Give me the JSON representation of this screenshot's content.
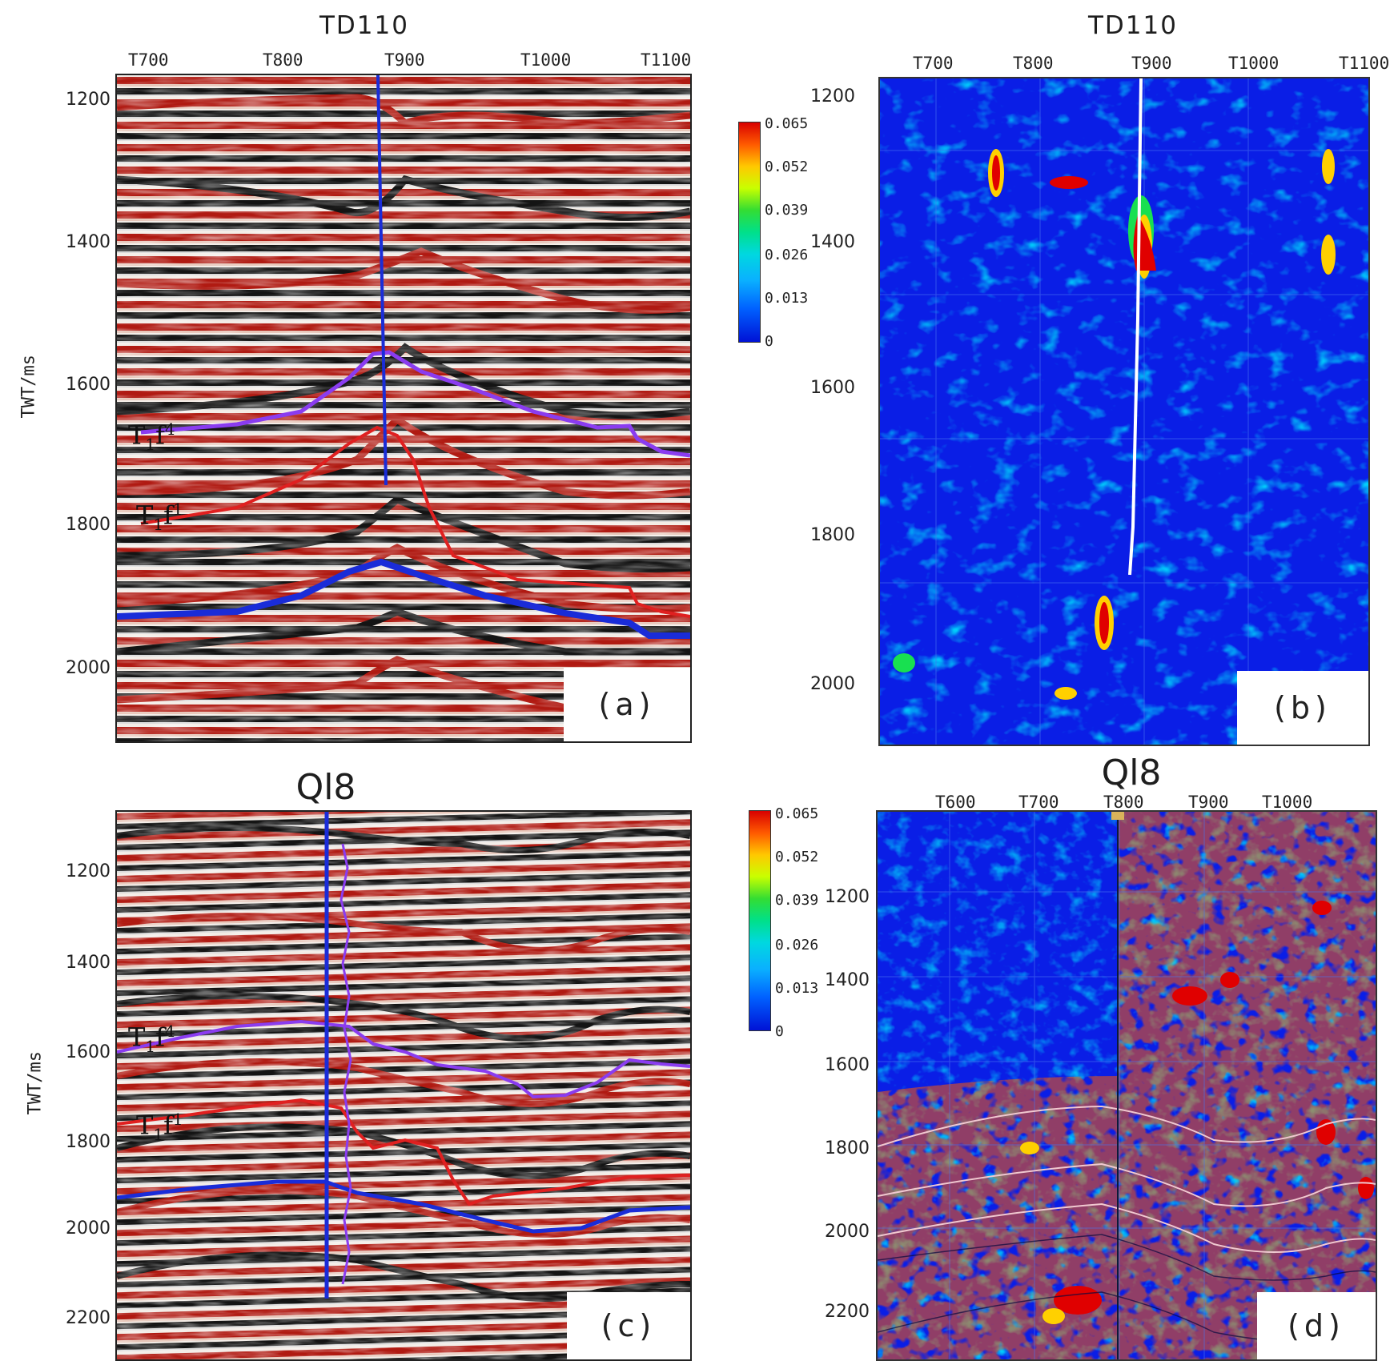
{
  "panel_a": {
    "title": "TD110",
    "x_ticks": [
      "T700",
      "T800",
      "T900",
      "T1000",
      "T1100"
    ],
    "y_ticks": [
      "1200",
      "1400",
      "1600",
      "1800",
      "2000"
    ],
    "y_label": "TWT/ms",
    "label": "(a)",
    "horizon_upper": {
      "main": "T",
      "sub": "1",
      "mid": "f",
      "sup": "4"
    },
    "horizon_lower": {
      "main": "T",
      "sub": "1",
      "mid": "f",
      "sup": "1"
    }
  },
  "panel_b": {
    "title": "TD110",
    "x_ticks": [
      "T700",
      "T800",
      "T900",
      "T1000",
      "T1100"
    ],
    "y_ticks": [
      "1200",
      "1400",
      "1600",
      "1800",
      "2000"
    ],
    "label": "(b)"
  },
  "colorbar_top": {
    "ticks": [
      "0.065",
      "0.052",
      "0.039",
      "0.026",
      "0.013",
      "0"
    ]
  },
  "panel_c": {
    "title": "Ql8",
    "y_ticks": [
      "1200",
      "1400",
      "1600",
      "1800",
      "2000",
      "2200"
    ],
    "y_label": "TWT/ms",
    "label": "(c)",
    "horizon_upper": {
      "main": "T",
      "sub": "1",
      "mid": "f",
      "sup": "4"
    },
    "horizon_lower": {
      "main": "T",
      "sub": "1",
      "mid": "f",
      "sup": "1"
    }
  },
  "panel_d": {
    "title": "Ql8",
    "x_ticks": [
      "T600",
      "T700",
      "T800",
      "T900",
      "T1000"
    ],
    "y_ticks": [
      "1200",
      "1400",
      "1600",
      "1800",
      "2000",
      "2200"
    ],
    "label": "(d)"
  },
  "colorbar_bottom": {
    "ticks": [
      "0.065",
      "0.052",
      "0.039",
      "0.026",
      "0.013",
      "0"
    ]
  },
  "colors": {
    "seis_red": "#b01a12",
    "seis_black": "#141414",
    "attr_blue": "#0a1ee6",
    "horizon_purple": "#8a3cf0",
    "horizon_red": "#e02020",
    "horizon_blue": "#1a2cd8"
  }
}
